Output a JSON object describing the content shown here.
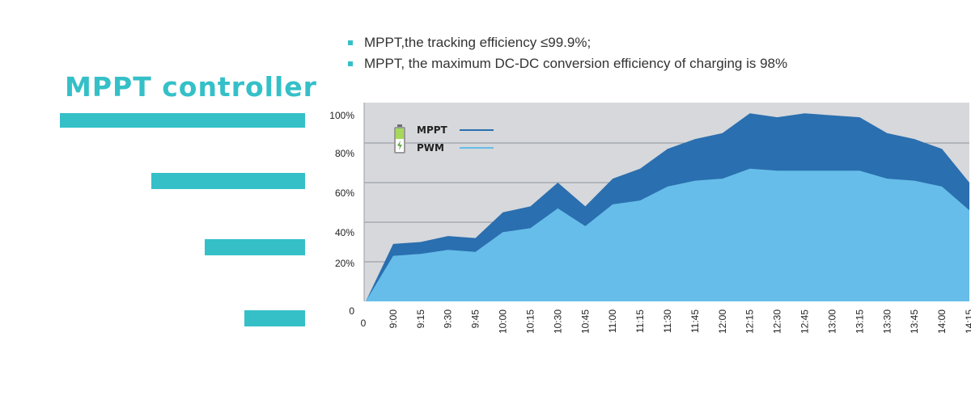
{
  "title": "MPPT controller",
  "bullets": [
    "MPPT,the tracking efficiency ≤99.9%;",
    "MPPT, the maximum DC-DC conversion efficiency of  charging is 98%"
  ],
  "colors": {
    "accent": "#35c0c8",
    "mppt": "#2a6faf",
    "pwm": "#66bde9",
    "plot_bg": "#d6d8dc",
    "grid": "#8f959b"
  },
  "icon": "battery-icon",
  "chart_data": {
    "type": "area",
    "x": [
      "0",
      "9:00",
      "9:15",
      "9:30",
      "9:45",
      "10:00",
      "10:15",
      "10:30",
      "10:45",
      "11:00",
      "11:15",
      "11:30",
      "11:45",
      "12:00",
      "12:15",
      "12:30",
      "12:45",
      "13:00",
      "13:15",
      "13:30",
      "13:45",
      "14:00",
      "14:15"
    ],
    "series": [
      {
        "name": "MPPT",
        "color": "#2a6faf",
        "values": [
          0,
          29,
          30,
          33,
          32,
          45,
          48,
          60,
          48,
          62,
          67,
          77,
          82,
          85,
          95,
          93,
          95,
          94,
          93,
          85,
          82,
          77,
          60
        ]
      },
      {
        "name": "PWM",
        "color": "#66bde9",
        "values": [
          0,
          23,
          24,
          26,
          25,
          35,
          37,
          47,
          38,
          49,
          51,
          58,
          61,
          62,
          67,
          66,
          66,
          66,
          66,
          62,
          61,
          58,
          46
        ]
      }
    ],
    "y_ticks": [
      "0",
      "20%",
      "40%",
      "60%",
      "80%",
      "100%"
    ],
    "y_tick_values": [
      0,
      20,
      40,
      60,
      80,
      100
    ],
    "ylim": [
      0,
      100
    ],
    "grid": true,
    "legend": "top-left"
  }
}
